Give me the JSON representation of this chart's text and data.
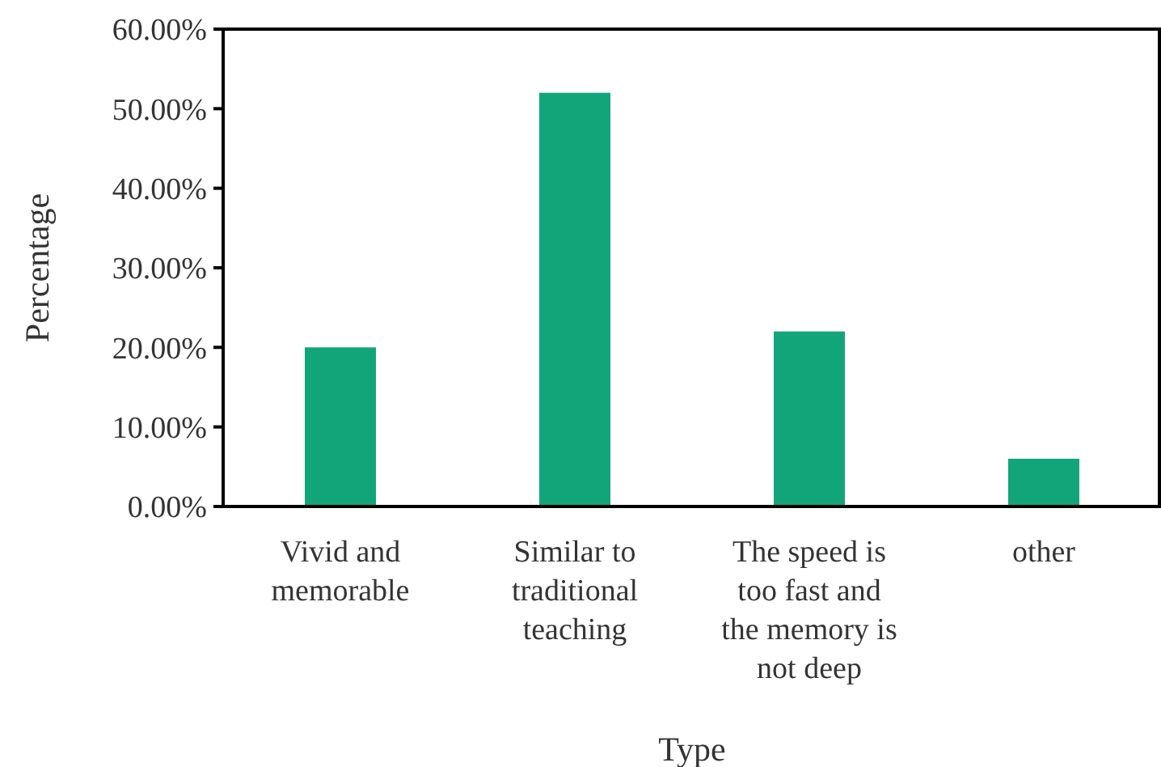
{
  "chart_data": {
    "type": "bar",
    "xlabel": "Type",
    "ylabel": "Percentage",
    "categories": [
      "Vivid and memorable",
      "Similar to traditional teaching",
      "The speed is too fast and the memory is not deep",
      "other"
    ],
    "values": [
      20,
      52,
      22,
      6
    ],
    "color": "#13a57a",
    "ylim": [
      0,
      60
    ],
    "yticks": [
      {
        "value": 0,
        "label": "0.00%"
      },
      {
        "value": 10,
        "label": "10.00%"
      },
      {
        "value": 20,
        "label": "20.00%"
      },
      {
        "value": 30,
        "label": "30.00%"
      },
      {
        "value": 40,
        "label": "40.00%"
      },
      {
        "value": 50,
        "label": "50.00%"
      },
      {
        "value": 60,
        "label": "60.00%"
      }
    ],
    "grid": false
  }
}
